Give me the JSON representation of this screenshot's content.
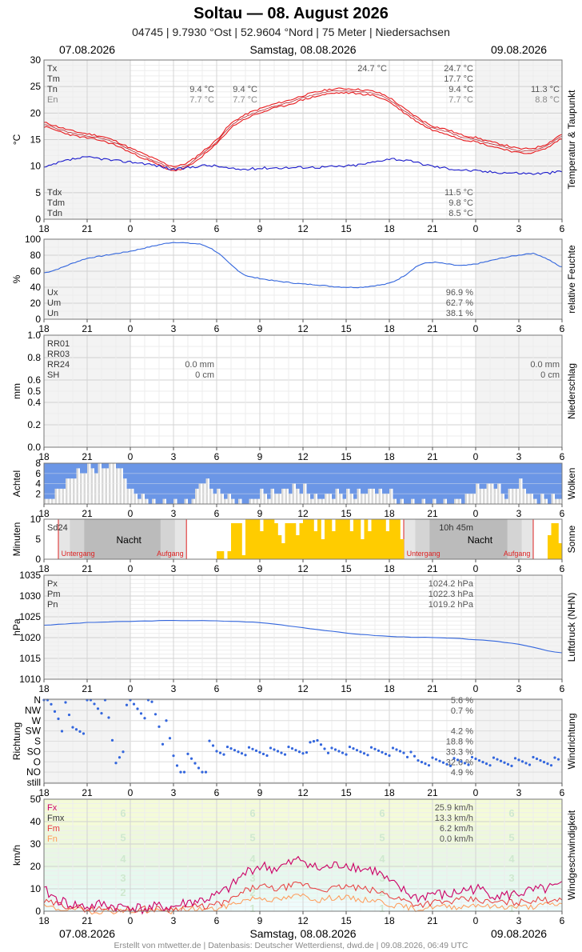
{
  "header": {
    "title": "Soltau  —  08. August 2026",
    "subtitle": "04745  |  9.7930 °Ost  |  52.9604 °Nord  |  75 Meter  |  Niedersachsen",
    "date_left": "07.08.2026",
    "date_center": "Samstag, 08.08.2026",
    "date_right": "09.08.2026"
  },
  "footer": "Erstellt von mtwetter.de | Datenbasis: Deutscher Wetterdienst, dwd.de | 09.08.2026, 06:49 UTC",
  "x_ticks": [
    "18",
    "21",
    "0",
    "3",
    "6",
    "9",
    "12",
    "15",
    "18",
    "21",
    "0",
    "3",
    "6"
  ],
  "colors": {
    "temp": "#e8191c",
    "dew": "#1a1acc",
    "humidity": "#3366dd",
    "cloud": "#6b96e6",
    "sun": "#ffcc00",
    "pressure": "#3366dd",
    "wind_fx": "#cc0066",
    "wind_fm": "#e83c3c",
    "wind_fn": "#ff9955",
    "night": "#bbbbbb",
    "sunline": "#dd2222"
  },
  "chart_data": [
    {
      "type": "line",
      "id": "temp",
      "ylabel": "°C",
      "right_label": "Temperatur & Taupunkt",
      "ylim": [
        0,
        30
      ],
      "yticks": [
        0,
        5,
        10,
        15,
        20,
        25,
        30
      ],
      "legend_top": [
        "Tx",
        "Tm",
        "Tn",
        "En"
      ],
      "legend_bottom": [
        "Tdx",
        "Tdm",
        "Tdn"
      ],
      "annot_day1": {
        "Tn": "9.4 °C",
        "En": "7.7 °C"
      },
      "annot_day1b": {
        "Tn": "9.4 °C",
        "En": "7.7 °C"
      },
      "annot_tx": "24.7 °C",
      "annot_day2": {
        "Tx": "24.7 °C",
        "Tm": "17.7 °C",
        "Tn": "9.4 °C",
        "En": "7.7 °C"
      },
      "annot_day3": {
        "Tn": "11.3 °C",
        "En": "8.8 °C"
      },
      "annot_dew": {
        "Tdx": "11.5 °C",
        "Tdm": "9.8 °C",
        "Tdn": "8.5 °C"
      },
      "x": [
        -6,
        -5,
        -4,
        -3,
        -2,
        -1,
        0,
        1,
        2,
        3,
        4,
        5,
        6,
        7,
        8,
        9,
        10,
        11,
        12,
        13,
        14,
        15,
        16,
        17,
        18,
        19,
        20,
        21,
        22,
        23,
        24,
        25,
        26,
        27,
        28,
        29,
        30
      ],
      "series": [
        {
          "key": "T",
          "values": [
            17.8,
            17.0,
            16.2,
            15.7,
            15.2,
            14.3,
            13.0,
            11.8,
            10.6,
            9.6,
            10.3,
            12.3,
            14.6,
            17.6,
            19.3,
            20.4,
            21.3,
            22.0,
            22.9,
            23.6,
            24.1,
            24.2,
            24.0,
            23.6,
            22.5,
            20.5,
            18.7,
            17.2,
            16.5,
            15.5,
            15.0,
            14.2,
            13.6,
            12.9,
            13.0,
            13.9,
            15.6
          ]
        },
        {
          "key": "Td",
          "values": [
            9.7,
            10.6,
            11.3,
            11.6,
            11.4,
            11.0,
            10.8,
            10.5,
            10.0,
            9.4,
            9.7,
            10.1,
            10.0,
            9.5,
            9.4,
            9.6,
            9.7,
            9.7,
            9.8,
            9.8,
            9.9,
            10.0,
            10.3,
            10.8,
            11.4,
            11.1,
            10.6,
            10.0,
            9.6,
            9.3,
            9.1,
            8.9,
            8.8,
            8.7,
            8.6,
            8.7,
            9.0
          ]
        }
      ]
    },
    {
      "type": "line",
      "id": "hum",
      "ylabel": "%",
      "right_label": "relative Feuchte",
      "ylim": [
        0,
        100
      ],
      "yticks": [
        0,
        20,
        40,
        60,
        80,
        100
      ],
      "legend": [
        "Ux",
        "Um",
        "Un"
      ],
      "annot": {
        "Ux": "96.9 %",
        "Um": "62.7 %",
        "Un": "38.1 %"
      },
      "x": [
        -6,
        -5,
        -4,
        -3,
        -2,
        -1,
        0,
        1,
        2,
        3,
        4,
        5,
        6,
        7,
        8,
        9,
        10,
        11,
        12,
        13,
        14,
        15,
        16,
        17,
        18,
        19,
        20,
        21,
        22,
        23,
        24,
        25,
        26,
        27,
        28,
        29,
        30
      ],
      "series": [
        {
          "key": "U",
          "values": [
            58,
            63,
            70,
            76,
            79,
            82,
            85,
            89,
            93,
            96,
            95,
            93,
            84,
            68,
            55,
            51,
            48,
            46,
            44,
            43,
            41,
            40,
            40,
            42,
            45,
            54,
            67,
            71,
            69,
            67,
            69,
            73,
            77,
            80,
            82,
            75,
            65
          ]
        }
      ]
    },
    {
      "type": "bar",
      "id": "rain",
      "ylabel": "mm",
      "right_label": "Niederschlag",
      "ylim": [
        0,
        1
      ],
      "yticks": [
        "0.0",
        "0.2",
        "0.4",
        "0.5",
        "0.6",
        "0.8",
        "1.0"
      ],
      "legend": [
        "RR01",
        "RR03",
        "RR24",
        "SH"
      ],
      "annot_day1": {
        "RR24": "0.0 mm",
        "SH": "0 cm"
      },
      "annot_day2": {
        "RR24": "0.0 mm",
        "SH": "0 cm"
      },
      "values": []
    },
    {
      "type": "bar",
      "id": "cloud",
      "ylabel": "Achtel",
      "right_label": "Wolken",
      "ylim": [
        0,
        8
      ],
      "yticks": [
        2,
        4,
        6,
        8
      ],
      "x": [
        -6,
        -5,
        -4,
        -3,
        -2,
        -1,
        0,
        1,
        2,
        3,
        4,
        5,
        6,
        7,
        8,
        9,
        10,
        11,
        12,
        13,
        14,
        15,
        16,
        17,
        18,
        19,
        20,
        21,
        22,
        23,
        24,
        25,
        26,
        27,
        28,
        29,
        30
      ],
      "values": [
        8,
        5,
        2,
        1,
        1,
        0,
        6,
        7,
        8,
        8,
        8,
        3,
        6,
        7,
        8,
        6,
        6,
        5,
        5,
        7,
        6,
        6,
        6,
        5,
        6,
        8,
        8,
        8,
        8,
        7,
        5,
        4,
        6,
        4,
        7,
        7,
        6
      ]
    },
    {
      "type": "bar",
      "id": "sun",
      "ylabel": "Minuten",
      "right_label": "Sonne",
      "ylim": [
        0,
        10
      ],
      "yticks": [
        0,
        5,
        10
      ],
      "legend": [
        "Sd24"
      ],
      "annot": "10h 45m",
      "night_label": "Nacht",
      "sunset": "Untergang",
      "sunrise": "Aufgang",
      "x": [
        -6,
        -5,
        -4,
        -3,
        -2,
        -1,
        0,
        1,
        2,
        3,
        4,
        5,
        6,
        7,
        8,
        9,
        10,
        11,
        12,
        13,
        14,
        15,
        16,
        17,
        18,
        19,
        20,
        21,
        22,
        23,
        24,
        25,
        26,
        27,
        28,
        29,
        30
      ],
      "values": [
        0,
        0,
        0,
        0,
        0,
        0,
        0,
        0,
        0,
        0,
        0,
        0,
        2,
        9,
        10,
        10,
        9,
        9,
        10,
        10,
        10,
        10,
        10,
        10,
        10,
        0,
        0,
        0,
        0,
        0,
        0,
        0,
        0,
        0,
        0,
        9,
        10
      ]
    },
    {
      "type": "line",
      "id": "press",
      "ylabel": "hPa",
      "right_label": "Luftdruck (NHN)",
      "ylim": [
        1010,
        1035
      ],
      "yticks": [
        1010,
        1015,
        1020,
        1025,
        1030,
        1035
      ],
      "legend": [
        "Px",
        "Pm",
        "Pn"
      ],
      "annot": {
        "Px": "1024.2 hPa",
        "Pm": "1022.3 hPa",
        "Pn": "1019.2 hPa"
      },
      "x": [
        -6,
        -3,
        0,
        3,
        6,
        9,
        12,
        15,
        18,
        21,
        24,
        27,
        30
      ],
      "series": [
        {
          "key": "P",
          "values": [
            1023.0,
            1023.6,
            1023.9,
            1024.1,
            1024.0,
            1023.6,
            1022.4,
            1021.1,
            1020.3,
            1020.0,
            1019.5,
            1018.4,
            1016.3
          ]
        }
      ]
    },
    {
      "type": "scatter",
      "id": "dir",
      "ylabel": "Richtung",
      "right_label": "Windrichtung",
      "categories": [
        "N",
        "NW",
        "W",
        "SW",
        "S",
        "SO",
        "O",
        "NO",
        "still"
      ],
      "annot": [
        "5.6 %",
        "0.7 %",
        "",
        "4.2 %",
        "18.8 %",
        "33.3 %",
        "32.6 %",
        "4.9 %",
        ""
      ],
      "x": [
        -6,
        -5,
        -4,
        -3,
        -2,
        -1,
        0,
        1,
        2,
        3,
        4,
        5,
        6,
        7,
        8,
        9,
        10,
        11,
        12,
        13,
        14,
        15,
        16,
        17,
        18,
        19,
        20,
        21,
        22,
        23,
        24,
        25,
        26,
        27,
        28,
        29,
        30
      ],
      "values": [
        1,
        1,
        3,
        1,
        0,
        6,
        1,
        0,
        2,
        6,
        7,
        6,
        5,
        5,
        5,
        5,
        5,
        5,
        5,
        4,
        5,
        5,
        5,
        5,
        5,
        5,
        6,
        6,
        6,
        6,
        6,
        6,
        6,
        6,
        6,
        6,
        6
      ]
    },
    {
      "type": "line",
      "id": "wind",
      "ylabel": "km/h",
      "right_label": "Windgeschwindigkeit",
      "ylim": [
        0,
        50
      ],
      "yticks": [
        0,
        10,
        20,
        30,
        40,
        50
      ],
      "legend": [
        "Fx",
        "Fmx",
        "Fm",
        "Fn"
      ],
      "annot": {
        "Fx": "25.9 km/h",
        "Fmx": "13.3 km/h",
        "Fm": "6.2 km/h",
        "Fn": "0.0 km/h"
      },
      "bft": [
        "1",
        "2",
        "3",
        "4",
        "5",
        "6"
      ],
      "x": [
        -6,
        -5,
        -4,
        -3,
        -2,
        -1,
        0,
        1,
        2,
        3,
        4,
        5,
        6,
        7,
        8,
        9,
        10,
        11,
        12,
        13,
        14,
        15,
        16,
        17,
        18,
        19,
        20,
        21,
        22,
        23,
        24,
        25,
        26,
        27,
        28,
        29,
        30
      ],
      "series": [
        {
          "key": "Fx",
          "values": [
            9,
            5,
            3,
            2,
            3,
            2,
            2,
            1,
            2,
            2,
            4,
            5,
            7,
            11,
            17,
            20,
            19,
            21,
            23,
            19,
            20,
            21,
            19,
            18,
            13,
            9,
            6,
            8,
            7,
            9,
            10,
            8,
            7,
            8,
            9,
            10,
            11
          ]
        },
        {
          "key": "Fm",
          "values": [
            4,
            3,
            2,
            1,
            1,
            1,
            1,
            1,
            1,
            1,
            2,
            2,
            3,
            5,
            9,
            11,
            10,
            11,
            12,
            10,
            10,
            11,
            10,
            9,
            7,
            5,
            3,
            4,
            4,
            5,
            5,
            4,
            4,
            4,
            5,
            5,
            6
          ]
        },
        {
          "key": "Fn",
          "values": [
            2,
            1,
            1,
            0,
            0,
            0,
            0,
            0,
            0,
            0,
            1,
            1,
            1,
            3,
            5,
            6,
            5,
            6,
            7,
            5,
            6,
            6,
            5,
            5,
            3,
            2,
            1,
            2,
            2,
            2,
            3,
            2,
            2,
            2,
            2,
            3,
            3
          ]
        }
      ]
    }
  ]
}
